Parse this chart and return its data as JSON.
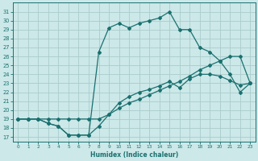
{
  "xlabel": "Humidex (Indice chaleur)",
  "bg_color": "#cce8e8",
  "grid_color": "#aacccc",
  "line_color": "#1a7070",
  "xlim": [
    -0.5,
    23.5
  ],
  "ylim": [
    16.5,
    32
  ],
  "yticks": [
    17,
    18,
    19,
    20,
    21,
    22,
    23,
    24,
    25,
    26,
    27,
    28,
    29,
    30,
    31
  ],
  "xticks": [
    0,
    1,
    2,
    3,
    4,
    5,
    6,
    7,
    8,
    9,
    10,
    11,
    12,
    13,
    14,
    15,
    16,
    17,
    18,
    19,
    20,
    21,
    22,
    23
  ],
  "curve_upper_x": [
    0,
    1,
    2,
    3,
    4,
    5,
    6,
    7,
    8,
    9,
    10,
    11,
    12,
    13,
    14,
    15,
    16,
    17,
    18,
    19,
    20,
    21,
    22,
    23
  ],
  "curve_upper_y": [
    19.0,
    19.0,
    19.0,
    18.5,
    18.2,
    17.2,
    17.2,
    17.2,
    26.5,
    29.2,
    29.7,
    29.2,
    29.7,
    30.0,
    30.3,
    31.0,
    29.0,
    29.0,
    27.0,
    26.5,
    25.5,
    24.0,
    22.0,
    23.0
  ],
  "curve_mid_x": [
    0,
    1,
    2,
    3,
    4,
    5,
    6,
    7,
    8,
    9,
    10,
    11,
    12,
    13,
    14,
    15,
    16,
    17,
    18,
    19,
    20,
    21,
    22,
    23
  ],
  "curve_mid_y": [
    19.0,
    19.0,
    19.0,
    19.0,
    19.0,
    19.0,
    19.0,
    19.0,
    19.0,
    19.5,
    20.2,
    20.8,
    21.2,
    21.7,
    22.2,
    22.7,
    23.2,
    23.8,
    24.5,
    25.0,
    25.5,
    26.0,
    26.0,
    23.0
  ],
  "curve_lower_x": [
    0,
    1,
    2,
    3,
    4,
    5,
    6,
    7,
    8,
    9,
    10,
    11,
    12,
    13,
    14,
    15,
    16,
    17,
    18,
    19,
    20,
    21,
    22,
    23
  ],
  "curve_lower_y": [
    19.0,
    19.0,
    19.0,
    18.5,
    18.2,
    17.2,
    17.2,
    17.2,
    18.2,
    19.5,
    20.8,
    21.5,
    22.0,
    22.3,
    22.7,
    23.2,
    22.5,
    23.5,
    24.0,
    24.0,
    23.8,
    23.3,
    22.8,
    23.0
  ]
}
